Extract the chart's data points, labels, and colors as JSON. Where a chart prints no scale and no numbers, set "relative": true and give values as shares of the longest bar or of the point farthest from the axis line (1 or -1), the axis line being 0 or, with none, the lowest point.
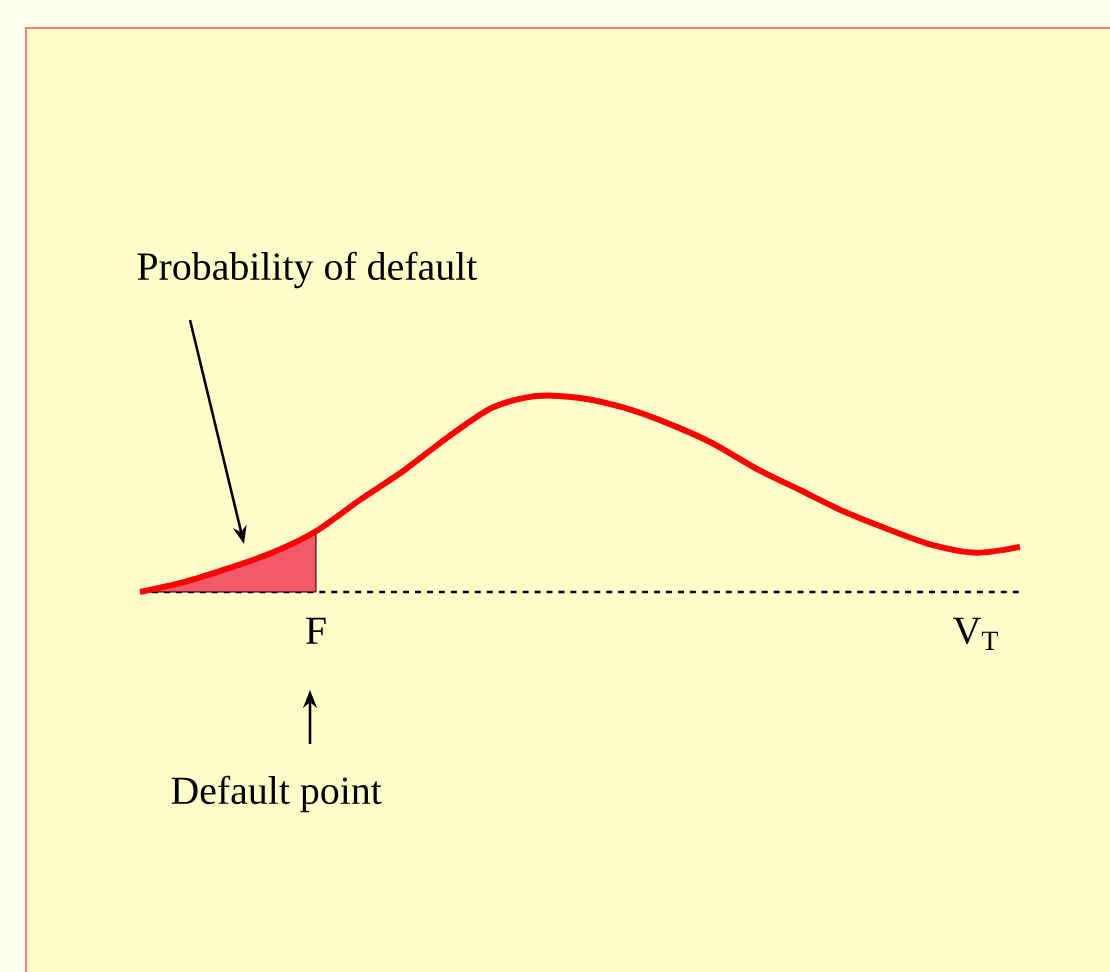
{
  "chart_data": {
    "type": "line",
    "relative": true,
    "categories": [
      null,
      null,
      null,
      null,
      "F",
      null,
      null,
      null,
      null,
      null,
      null,
      null,
      null,
      null,
      null,
      null,
      null,
      null,
      null,
      "V$_{T}$",
      null
    ],
    "series": [
      {
        "type": "area",
        "color": "#f25a6a",
        "values": [
          0,
          0.05,
          0.12,
          0.2,
          0.31,
          null,
          null,
          null,
          null,
          null,
          null,
          null,
          null,
          null,
          null,
          null,
          null,
          null,
          null,
          null,
          null
        ]
      },
      {
        "color": "#ff0000",
        "values": [
          0,
          0.05,
          0.12,
          0.2,
          0.31,
          0.47,
          0.62,
          0.79,
          0.94,
          1.0,
          0.99,
          0.94,
          0.86,
          0.76,
          0.63,
          0.52,
          0.41,
          0.32,
          0.24,
          0.2,
          0.23
        ]
      }
    ],
    "annotations": [
      "Probability of default",
      "Default point"
    ]
  }
}
